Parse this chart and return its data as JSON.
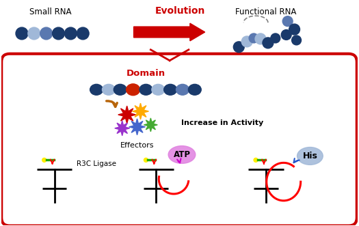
{
  "bg_color": "#ffffff",
  "red_box_color": "#cc0000",
  "dark_blue": "#1a3a6b",
  "light_blue": "#5a78b0",
  "lighter_blue": "#a0b8d8",
  "red_domain": "#cc2200",
  "arrow_red": "#cc0000",
  "title": "Small RNA",
  "title2": "Functional RNA",
  "evolution_label": "Evolution",
  "domain_label": "Domain",
  "activity_label": "Increase in Activity",
  "effectors_label": "Effectors",
  "r3c_label": "R3C Ligase",
  "atp_label": "ATP",
  "his_label": "His",
  "atp_color": "#e080e0",
  "his_color": "#a0b8d8",
  "star_colors": [
    "#cc0000",
    "#ffaa00",
    "#9933cc",
    "#4466cc",
    "#44aa33"
  ],
  "brown_arrow": "#b8650a"
}
